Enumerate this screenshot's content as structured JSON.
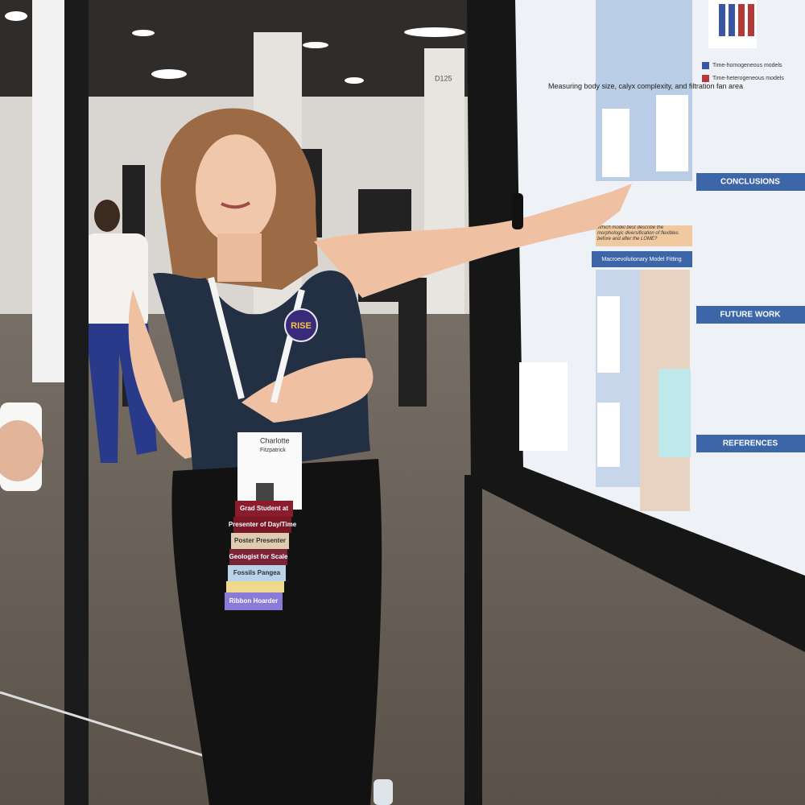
{
  "poster": {
    "sections": [
      "Measuring body size, calyx complexity, and filtration fan area",
      "CONCLUSIONS",
      "FUTURE WORK",
      "REFERENCES",
      "Macroevolutionary Model Fitting",
      "Which model best describe the morphologic diversification of flexibles before and after the LOME?"
    ],
    "legend": [
      "Time-homogeneous models",
      "Time-heterogeneous models"
    ]
  },
  "badge": {
    "button": "RISE",
    "name": "Charlotte",
    "surname": "Fitzpatrick",
    "ribbons": [
      "Grad Student at",
      "Presenter of Day/Time",
      "Poster Presenter",
      "Geologist for Scale",
      "Fossils Pangea",
      "Ribbon Hoarder"
    ]
  },
  "signs": [
    "D125"
  ]
}
